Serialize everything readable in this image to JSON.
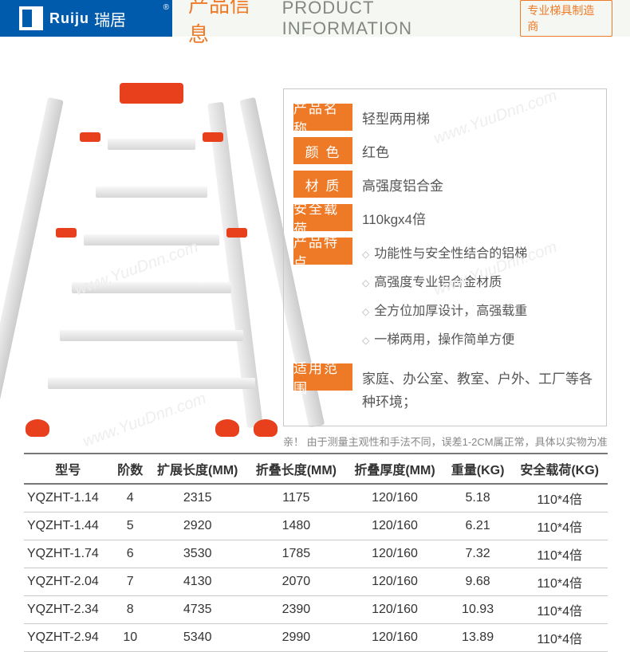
{
  "header": {
    "logo_en": "Ruiju",
    "logo_cn": "瑞居",
    "title_cn": "产品信息",
    "title_en": "PRODUCT INFORMATION",
    "badge": "专业梯具制造商"
  },
  "colors": {
    "brand_blue": "#005bac",
    "accent_orange": "#ee7a27",
    "ladder_red": "#e83f1c",
    "panel_border": "#c8c8c8",
    "text_gray": "#555555",
    "header_bg": "#f5f7f2"
  },
  "info": {
    "labels": {
      "name": "产品名称",
      "color": "颜 色",
      "material": "材 质",
      "load": "安全载荷",
      "features": "产品特点",
      "scope": "适用范围"
    },
    "values": {
      "name": "轻型两用梯",
      "color": "红色",
      "material": "高强度铝合金",
      "load": "110kgx4倍",
      "scope": "家庭、办公室、教室、户外、工厂等各种环境；"
    },
    "features": [
      "功能性与安全性结合的铝梯",
      "高强度专业铝合金材质",
      "全方位加厚设计，高强载重",
      "一梯两用，操作简单方便"
    ]
  },
  "disclaimer": "亲！ 由于测量主观性和手法不同，误差1-2CM属正常，具体以实物为准",
  "spec_table": {
    "columns": [
      "型号",
      "阶数",
      "扩展长度(MM)",
      "折叠长度(MM)",
      "折叠厚度(MM)",
      "重量(KG)",
      "安全载荷(KG)"
    ],
    "rows": [
      [
        "YQZHT-1.14",
        "4",
        "2315",
        "1175",
        "120/160",
        "5.18",
        "110*4倍"
      ],
      [
        "YQZHT-1.44",
        "5",
        "2920",
        "1480",
        "120/160",
        "6.21",
        "110*4倍"
      ],
      [
        "YQZHT-1.74",
        "6",
        "3530",
        "1785",
        "120/160",
        "7.32",
        "110*4倍"
      ],
      [
        "YQZHT-2.04",
        "7",
        "4130",
        "2070",
        "120/160",
        "9.68",
        "110*4倍"
      ],
      [
        "YQZHT-2.34",
        "8",
        "4735",
        "2390",
        "120/160",
        "10.93",
        "110*4倍"
      ],
      [
        "YQZHT-2.94",
        "10",
        "5340",
        "2990",
        "120/160",
        "13.89",
        "110*4倍"
      ]
    ]
  },
  "watermark": "www.YuuDnn.com"
}
